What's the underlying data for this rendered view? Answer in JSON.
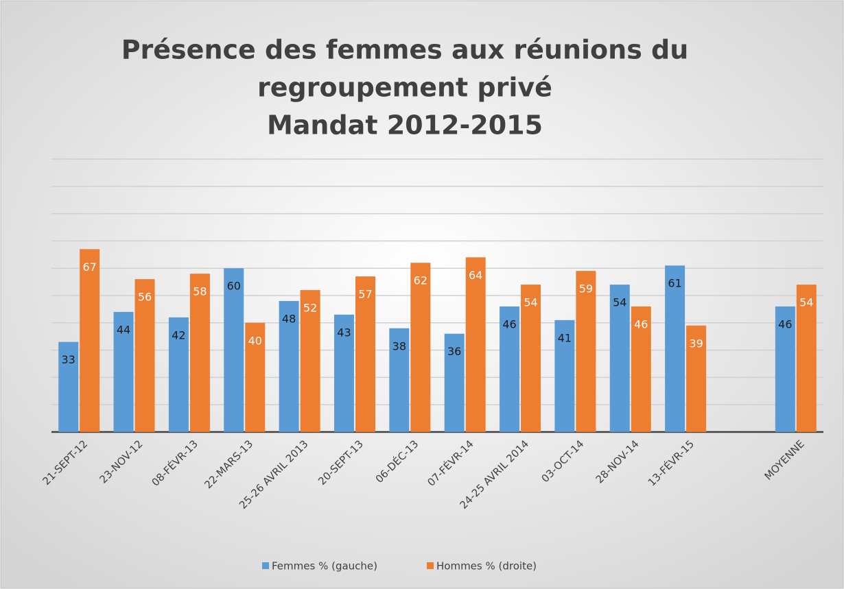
{
  "chart_data": {
    "type": "bar",
    "title": [
      "Présence des femmes aux réunions du",
      "regroupement privé",
      "Mandat 2012-2015"
    ],
    "categories": [
      "21-SEPT-12",
      "23-NOV-12",
      "08-FÉVR-13",
      "22-MARS-13",
      "25-26 AVRIL 2013",
      "20-SEPT-13",
      "06-DÉC-13",
      "07-FÉVR-14",
      "24-25 AVRIL 2014",
      "03-OCT-14",
      "28-NOV-14",
      "13-FÉVR-15",
      null,
      "MOYENNE"
    ],
    "series": [
      {
        "name": "Femmes % (gauche)",
        "color": "#5b9bd5",
        "values": [
          33,
          44,
          42,
          60,
          48,
          43,
          38,
          36,
          46,
          41,
          54,
          61,
          null,
          46
        ]
      },
      {
        "name": "Hommes % (droite)",
        "color": "#ed7d31",
        "values": [
          67,
          56,
          58,
          40,
          52,
          57,
          62,
          64,
          54,
          59,
          46,
          39,
          null,
          54
        ]
      }
    ],
    "ylim": [
      0,
      100
    ],
    "yticks": [
      0,
      10,
      20,
      30,
      40,
      50,
      60,
      70,
      80,
      90,
      100
    ],
    "grid": true,
    "legend": "bottom"
  }
}
